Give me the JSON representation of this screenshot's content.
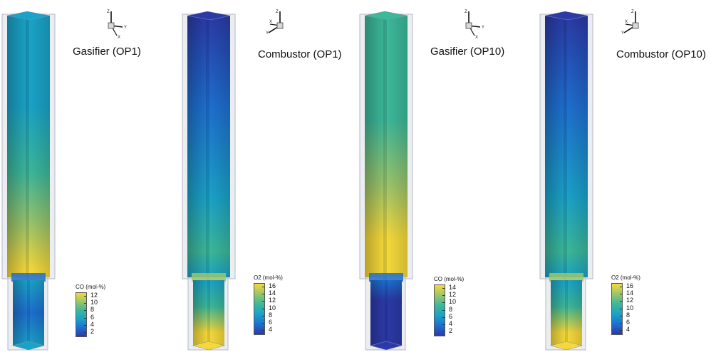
{
  "colors": {
    "min": "#2b3aa8",
    "low": "#1e6fd0",
    "mid": "#1aa3c8",
    "midhigh": "#3cb89a",
    "high": "#9cc56a",
    "max": "#f5d93a",
    "glass": "#c9ccd6"
  },
  "axis_labels": {
    "z": "Z",
    "y": "Y",
    "x": "X"
  },
  "panels": [
    {
      "title": "Gasifier (OP1)",
      "quantity": "CO",
      "scheme": "gasifier1",
      "legend": {
        "title": "CO (mol-%)",
        "ticks": [
          "12",
          "10",
          "8",
          "6",
          "4",
          "2"
        ],
        "range": [
          1,
          13
        ]
      }
    },
    {
      "title": "Combustor (OP1)",
      "quantity": "O2",
      "scheme": "combustor",
      "legend": {
        "title": "O2 (mol-%)",
        "ticks": [
          "16",
          "14",
          "12",
          "10",
          "8",
          "6",
          "4"
        ],
        "range": [
          3,
          17
        ]
      }
    },
    {
      "title": "Gasifier (OP10)",
      "quantity": "CO",
      "scheme": "gasifier10",
      "legend": {
        "title": "CO (mol-%)",
        "ticks": [
          "14",
          "12",
          "10",
          "8",
          "6",
          "4",
          "2"
        ],
        "range": [
          1,
          15
        ]
      }
    },
    {
      "title": "Combustor (OP10)",
      "quantity": "O2",
      "scheme": "combustor",
      "legend": {
        "title": "O2 (mol-%)",
        "ticks": [
          "16",
          "14",
          "12",
          "10",
          "8",
          "6",
          "4"
        ],
        "range": [
          3,
          17
        ]
      }
    }
  ]
}
